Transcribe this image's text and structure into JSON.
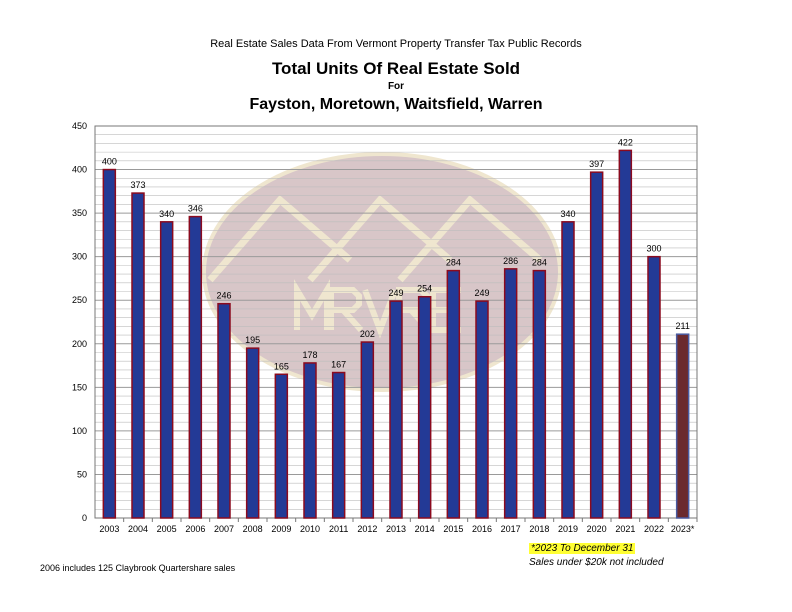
{
  "header": {
    "supertitle": "Real Estate Sales Data From Vermont Property Transfer Tax Public Records",
    "title": "Total Units Of Real Estate Sold",
    "for": "For",
    "subtitle": "Fayston, Moretown, Waitsfield, Warren"
  },
  "watermark": {
    "text": "MRVRE"
  },
  "notes": {
    "highlight": "*2023 To December 31",
    "excluded": "Sales under $20k not included",
    "footnote": "2006 includes 125 Claybrook Quartershare sales"
  },
  "colors": {
    "bar": "#233a96",
    "bar_border": "#8b0a1e",
    "bar_last": "#6b2a2e",
    "grid": "#bdbdbd",
    "highlight": "#ffff33"
  },
  "chart_data": {
    "type": "bar",
    "title": "Total Units Of Real Estate Sold",
    "categories": [
      "2003",
      "2004",
      "2005",
      "2006",
      "2007",
      "2008",
      "2009",
      "2010",
      "2011",
      "2012",
      "2013",
      "2014",
      "2015",
      "2016",
      "2017",
      "2018",
      "2019",
      "2020",
      "2021",
      "2022",
      "2023*"
    ],
    "values": [
      400,
      373,
      340,
      346,
      246,
      195,
      165,
      178,
      167,
      202,
      249,
      254,
      284,
      249,
      286,
      284,
      340,
      397,
      422,
      300,
      211
    ],
    "ylim": [
      0,
      450
    ],
    "yticks": [
      0,
      50,
      100,
      150,
      200,
      250,
      300,
      350,
      400,
      450
    ],
    "minor_grid_step": 10,
    "grid": true,
    "xlabel": "",
    "ylabel": ""
  }
}
